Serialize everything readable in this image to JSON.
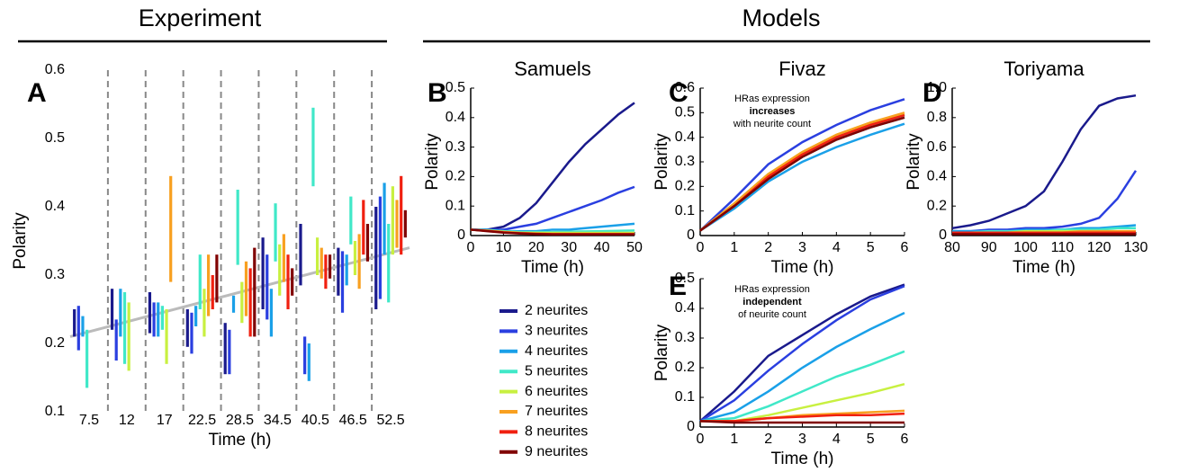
{
  "header": {
    "left": "Experiment",
    "right": "Models"
  },
  "legend": [
    {
      "label": "2 neurites",
      "color": "#1a1a8c"
    },
    {
      "label": "3 neurites",
      "color": "#2a3fe0"
    },
    {
      "label": "4 neurites",
      "color": "#1aa0e8"
    },
    {
      "label": "5 neurites",
      "color": "#40e8c8"
    },
    {
      "label": "6 neurites",
      "color": "#c8f040"
    },
    {
      "label": "7 neurites",
      "color": "#f8a020"
    },
    {
      "label": "8 neurites",
      "color": "#f02010"
    },
    {
      "label": "9 neurites",
      "color": "#800000"
    }
  ],
  "chart_data": [
    {
      "type": "range",
      "panel": "A",
      "xlabel": "Time (h)",
      "ylabel": "Polarity",
      "categories": [
        7.5,
        12,
        17,
        22.5,
        28.5,
        34.5,
        40.5,
        46.5,
        52.5
      ],
      "ylim": [
        0.1,
        0.6
      ],
      "yticks": [
        0.1,
        0.2,
        0.3,
        0.4,
        0.5,
        0.6
      ],
      "trend": [
        0.21,
        0.34
      ],
      "trend_color": "#bbbbbb",
      "series": [
        {
          "color": "#1a1a8c",
          "low": [
            0.21,
            0.22,
            0.215,
            0.195,
            0.155,
            0.25,
            0.285,
            0.27,
            0.25
          ],
          "high": [
            0.25,
            0.28,
            0.275,
            0.25,
            0.23,
            0.355,
            0.375,
            0.34,
            0.4
          ]
        },
        {
          "color": "#2a3fe0",
          "low": [
            0.19,
            0.175,
            0.21,
            0.185,
            0.155,
            0.235,
            0.155,
            0.245,
            0.265
          ],
          "high": [
            0.255,
            0.235,
            0.26,
            0.245,
            0.22,
            0.33,
            0.21,
            0.335,
            0.415
          ]
        },
        {
          "color": "#1aa0e8",
          "low": [
            0.21,
            0.21,
            0.21,
            0.225,
            0.245,
            0.21,
            0.145,
            0.285,
            0.33
          ],
          "high": [
            0.24,
            0.28,
            0.26,
            0.255,
            0.27,
            0.28,
            0.2,
            0.33,
            0.435
          ]
        },
        {
          "color": "#40e8c8",
          "low": [
            0.135,
            0.17,
            0.22,
            0.25,
            0.315,
            0.32,
            0.43,
            0.345,
            0.26
          ],
          "high": [
            0.22,
            0.275,
            0.255,
            0.33,
            0.425,
            0.405,
            0.545,
            0.415,
            0.375
          ]
        },
        {
          "color": "#c8f040",
          "low": [
            null,
            0.16,
            0.17,
            0.21,
            0.23,
            0.27,
            0.3,
            0.3,
            0.33
          ],
          "high": [
            null,
            0.26,
            0.25,
            0.28,
            0.29,
            0.345,
            0.355,
            0.35,
            0.43
          ]
        },
        {
          "color": "#f8a020",
          "low": [
            null,
            null,
            0.29,
            0.24,
            0.24,
            0.29,
            0.295,
            0.28,
            0.34
          ],
          "high": [
            null,
            null,
            0.445,
            0.33,
            0.32,
            0.36,
            0.34,
            0.36,
            0.41
          ]
        },
        {
          "color": "#f02010",
          "low": [
            null,
            null,
            null,
            0.25,
            0.21,
            0.25,
            0.28,
            0.33,
            0.33
          ],
          "high": [
            null,
            null,
            null,
            0.3,
            0.31,
            0.33,
            0.33,
            0.41,
            0.445
          ]
        },
        {
          "color": "#800000",
          "low": [
            null,
            null,
            null,
            0.26,
            0.21,
            0.27,
            0.295,
            0.32,
            0.355
          ],
          "high": [
            null,
            null,
            null,
            0.33,
            0.34,
            0.31,
            0.33,
            0.375,
            0.395
          ]
        }
      ]
    },
    {
      "type": "line",
      "panel": "B",
      "title": "Samuels",
      "xlabel": "Time (h)",
      "ylabel": "Polarity",
      "x": [
        0,
        5,
        10,
        15,
        20,
        25,
        30,
        35,
        40,
        45,
        50
      ],
      "xlim": [
        0,
        50
      ],
      "xticks": [
        0,
        10,
        20,
        30,
        40,
        50
      ],
      "ylim": [
        0,
        0.5
      ],
      "yticks": [
        0,
        0.1,
        0.2,
        0.3,
        0.4,
        0.5
      ],
      "series": [
        {
          "color": "#1a1a8c",
          "values": [
            0.02,
            0.02,
            0.03,
            0.06,
            0.11,
            0.18,
            0.25,
            0.31,
            0.36,
            0.41,
            0.45
          ]
        },
        {
          "color": "#2a3fe0",
          "values": [
            0.02,
            0.02,
            0.02,
            0.03,
            0.04,
            0.06,
            0.08,
            0.1,
            0.12,
            0.145,
            0.165
          ]
        },
        {
          "color": "#1aa0e8",
          "values": [
            0.02,
            0.02,
            0.015,
            0.015,
            0.015,
            0.02,
            0.02,
            0.025,
            0.03,
            0.035,
            0.04
          ]
        },
        {
          "color": "#40e8c8",
          "values": [
            0.02,
            0.018,
            0.015,
            0.012,
            0.012,
            0.012,
            0.013,
            0.014,
            0.015,
            0.016,
            0.017
          ]
        },
        {
          "color": "#c8f040",
          "values": [
            0.02,
            0.017,
            0.013,
            0.01,
            0.009,
            0.009,
            0.009,
            0.009,
            0.009,
            0.009,
            0.009
          ]
        },
        {
          "color": "#f8a020",
          "values": [
            0.02,
            0.016,
            0.012,
            0.009,
            0.007,
            0.006,
            0.006,
            0.006,
            0.006,
            0.006,
            0.006
          ]
        },
        {
          "color": "#f02010",
          "values": [
            0.02,
            0.016,
            0.011,
            0.008,
            0.006,
            0.005,
            0.005,
            0.005,
            0.005,
            0.005,
            0.005
          ]
        },
        {
          "color": "#800000",
          "values": [
            0.02,
            0.015,
            0.01,
            0.007,
            0.005,
            0.004,
            0.004,
            0.004,
            0.004,
            0.004,
            0.004
          ]
        }
      ]
    },
    {
      "type": "line",
      "panel": "C",
      "title": "Fivaz",
      "xlabel": "Time (h)",
      "ylabel": "Polarity",
      "annotation": [
        "HRas expression",
        "increases",
        "with neurite count"
      ],
      "x": [
        0,
        1,
        2,
        3,
        4,
        5,
        6
      ],
      "xlim": [
        0,
        6
      ],
      "xticks": [
        0,
        1,
        2,
        3,
        4,
        5,
        6
      ],
      "ylim": [
        0,
        0.6
      ],
      "yticks": [
        0,
        0.1,
        0.2,
        0.3,
        0.4,
        0.5,
        0.6
      ],
      "series": [
        {
          "color": "#1a1a8c",
          "values": [
            0.02,
            0.13,
            0.25,
            0.33,
            0.4,
            0.45,
            0.49
          ]
        },
        {
          "color": "#2a3fe0",
          "values": [
            0.02,
            0.15,
            0.29,
            0.38,
            0.45,
            0.51,
            0.555
          ]
        },
        {
          "color": "#1aa0e8",
          "values": [
            0.02,
            0.11,
            0.22,
            0.3,
            0.36,
            0.41,
            0.455
          ]
        },
        {
          "color": "#40e8c8",
          "values": [
            0.02,
            0.12,
            0.23,
            0.32,
            0.39,
            0.44,
            0.48
          ]
        },
        {
          "color": "#c8f040",
          "values": [
            0.02,
            0.13,
            0.25,
            0.34,
            0.41,
            0.46,
            0.495
          ]
        },
        {
          "color": "#f8a020",
          "values": [
            0.02,
            0.13,
            0.25,
            0.34,
            0.41,
            0.46,
            0.5
          ]
        },
        {
          "color": "#f02010",
          "values": [
            0.02,
            0.12,
            0.24,
            0.33,
            0.4,
            0.45,
            0.49
          ]
        },
        {
          "color": "#800000",
          "values": [
            0.02,
            0.12,
            0.23,
            0.32,
            0.39,
            0.44,
            0.48
          ]
        }
      ]
    },
    {
      "type": "line",
      "panel": "D",
      "title": "Toriyama",
      "xlabel": "Time (h)",
      "ylabel": "Polarity",
      "x": [
        80,
        85,
        90,
        95,
        100,
        105,
        110,
        115,
        120,
        125,
        130
      ],
      "xlim": [
        80,
        130
      ],
      "xticks": [
        80,
        90,
        100,
        110,
        120,
        130
      ],
      "ylim": [
        0,
        1
      ],
      "yticks": [
        0,
        0.2,
        0.4,
        0.6,
        0.8,
        {
          "value": 1,
          "label": "1.0"
        }
      ],
      "series": [
        {
          "color": "#1a1a8c",
          "values": [
            0.05,
            0.07,
            0.1,
            0.15,
            0.2,
            0.3,
            0.5,
            0.72,
            0.88,
            0.93,
            0.95
          ]
        },
        {
          "color": "#2a3fe0",
          "values": [
            0.03,
            0.03,
            0.04,
            0.04,
            0.05,
            0.05,
            0.06,
            0.08,
            0.12,
            0.25,
            0.44
          ]
        },
        {
          "color": "#1aa0e8",
          "values": [
            0.03,
            0.03,
            0.03,
            0.03,
            0.04,
            0.04,
            0.04,
            0.05,
            0.05,
            0.06,
            0.07
          ]
        },
        {
          "color": "#40e8c8",
          "values": [
            0.02,
            0.02,
            0.03,
            0.03,
            0.03,
            0.03,
            0.04,
            0.04,
            0.04,
            0.05,
            0.05
          ]
        },
        {
          "color": "#c8f040",
          "values": [
            0.02,
            0.02,
            0.02,
            0.02,
            0.03,
            0.03,
            0.03,
            0.03,
            0.03,
            0.03,
            0.03
          ]
        },
        {
          "color": "#f8a020",
          "values": [
            0.02,
            0.02,
            0.02,
            0.02,
            0.02,
            0.02,
            0.02,
            0.03,
            0.03,
            0.03,
            0.03
          ]
        },
        {
          "color": "#f02010",
          "values": [
            0.02,
            0.02,
            0.02,
            0.02,
            0.02,
            0.02,
            0.02,
            0.02,
            0.02,
            0.02,
            0.02
          ]
        },
        {
          "color": "#800000",
          "values": [
            0.01,
            0.01,
            0.01,
            0.01,
            0.01,
            0.01,
            0.01,
            0.01,
            0.01,
            0.01,
            0.01
          ]
        }
      ]
    },
    {
      "type": "line",
      "panel": "E",
      "xlabel": "Time (h)",
      "ylabel": "Polarity",
      "annotation": [
        "HRas expression",
        "independent",
        "of neurite count"
      ],
      "x": [
        0,
        1,
        2,
        3,
        4,
        5,
        6
      ],
      "xlim": [
        0,
        6
      ],
      "xticks": [
        0,
        1,
        2,
        3,
        4,
        5,
        6
      ],
      "ylim": [
        0,
        0.5
      ],
      "yticks": [
        0,
        0.1,
        0.2,
        0.3,
        0.4,
        0.5
      ],
      "series": [
        {
          "color": "#1a1a8c",
          "values": [
            0.02,
            0.12,
            0.24,
            0.31,
            0.38,
            0.44,
            0.48
          ]
        },
        {
          "color": "#2a3fe0",
          "values": [
            0.02,
            0.09,
            0.19,
            0.28,
            0.36,
            0.43,
            0.475
          ]
        },
        {
          "color": "#1aa0e8",
          "values": [
            0.02,
            0.05,
            0.12,
            0.2,
            0.27,
            0.33,
            0.385
          ]
        },
        {
          "color": "#40e8c8",
          "values": [
            0.02,
            0.03,
            0.07,
            0.12,
            0.17,
            0.21,
            0.255
          ]
        },
        {
          "color": "#c8f040",
          "values": [
            0.02,
            0.02,
            0.04,
            0.065,
            0.09,
            0.115,
            0.145
          ]
        },
        {
          "color": "#f8a020",
          "values": [
            0.02,
            0.02,
            0.03,
            0.04,
            0.045,
            0.05,
            0.055
          ]
        },
        {
          "color": "#f02010",
          "values": [
            0.02,
            0.02,
            0.03,
            0.035,
            0.04,
            0.04,
            0.045
          ]
        },
        {
          "color": "#800000",
          "values": [
            0.02,
            0.015,
            0.015,
            0.015,
            0.015,
            0.015,
            0.015
          ]
        }
      ]
    }
  ]
}
